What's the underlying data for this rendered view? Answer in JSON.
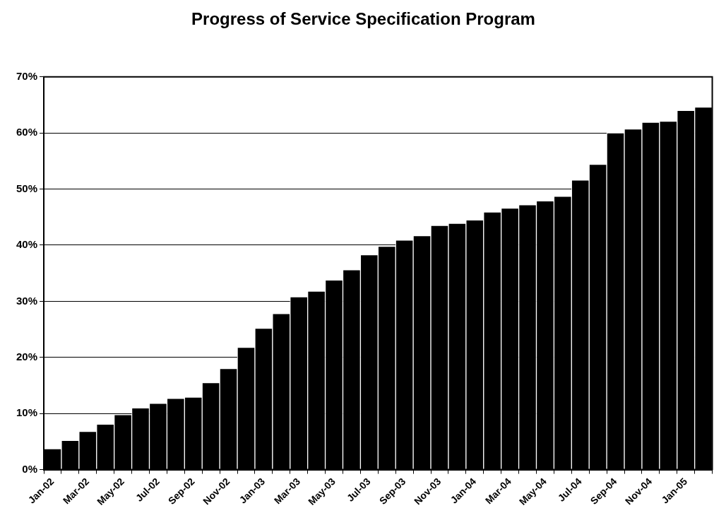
{
  "chart_data": {
    "type": "bar",
    "title": "Progress of Service Specification Program",
    "categories": [
      "Jan-02",
      null,
      "Mar-02",
      null,
      "May-02",
      null,
      "Jul-02",
      null,
      "Sep-02",
      null,
      "Nov-02",
      null,
      "Jan-03",
      null,
      "Mar-03",
      null,
      "May-03",
      null,
      "Jul-03",
      null,
      "Sep-03",
      null,
      "Nov-03",
      null,
      "Jan-04",
      null,
      "Mar-04",
      null,
      "May-04",
      null,
      "Jul-04",
      null,
      "Sep-04",
      null,
      "Nov-04",
      null,
      "Jan-05",
      null
    ],
    "values": [
      3.7,
      5.2,
      6.8,
      8.1,
      9.8,
      11.0,
      11.8,
      12.7,
      12.9,
      15.5,
      18.0,
      21.8,
      25.2,
      27.8,
      30.8,
      31.8,
      33.8,
      35.6,
      38.3,
      39.8,
      40.9,
      41.7,
      43.5,
      43.9,
      44.5,
      45.9,
      46.6,
      47.2,
      47.9,
      48.7,
      51.6,
      54.4,
      60.0,
      60.7,
      61.9,
      62.1,
      64.0,
      64.6
    ],
    "color": "#000000",
    "ylim": [
      0,
      70
    ],
    "yticks": [
      {
        "value": 0,
        "label": "0%"
      },
      {
        "value": 10,
        "label": "10%"
      },
      {
        "value": 20,
        "label": "20%"
      },
      {
        "value": 30,
        "label": "30%"
      },
      {
        "value": 40,
        "label": "40%"
      },
      {
        "value": 50,
        "label": "50%"
      },
      {
        "value": 60,
        "label": "60%"
      },
      {
        "value": 70,
        "label": "70%"
      }
    ],
    "grid": "y",
    "legend": false
  }
}
